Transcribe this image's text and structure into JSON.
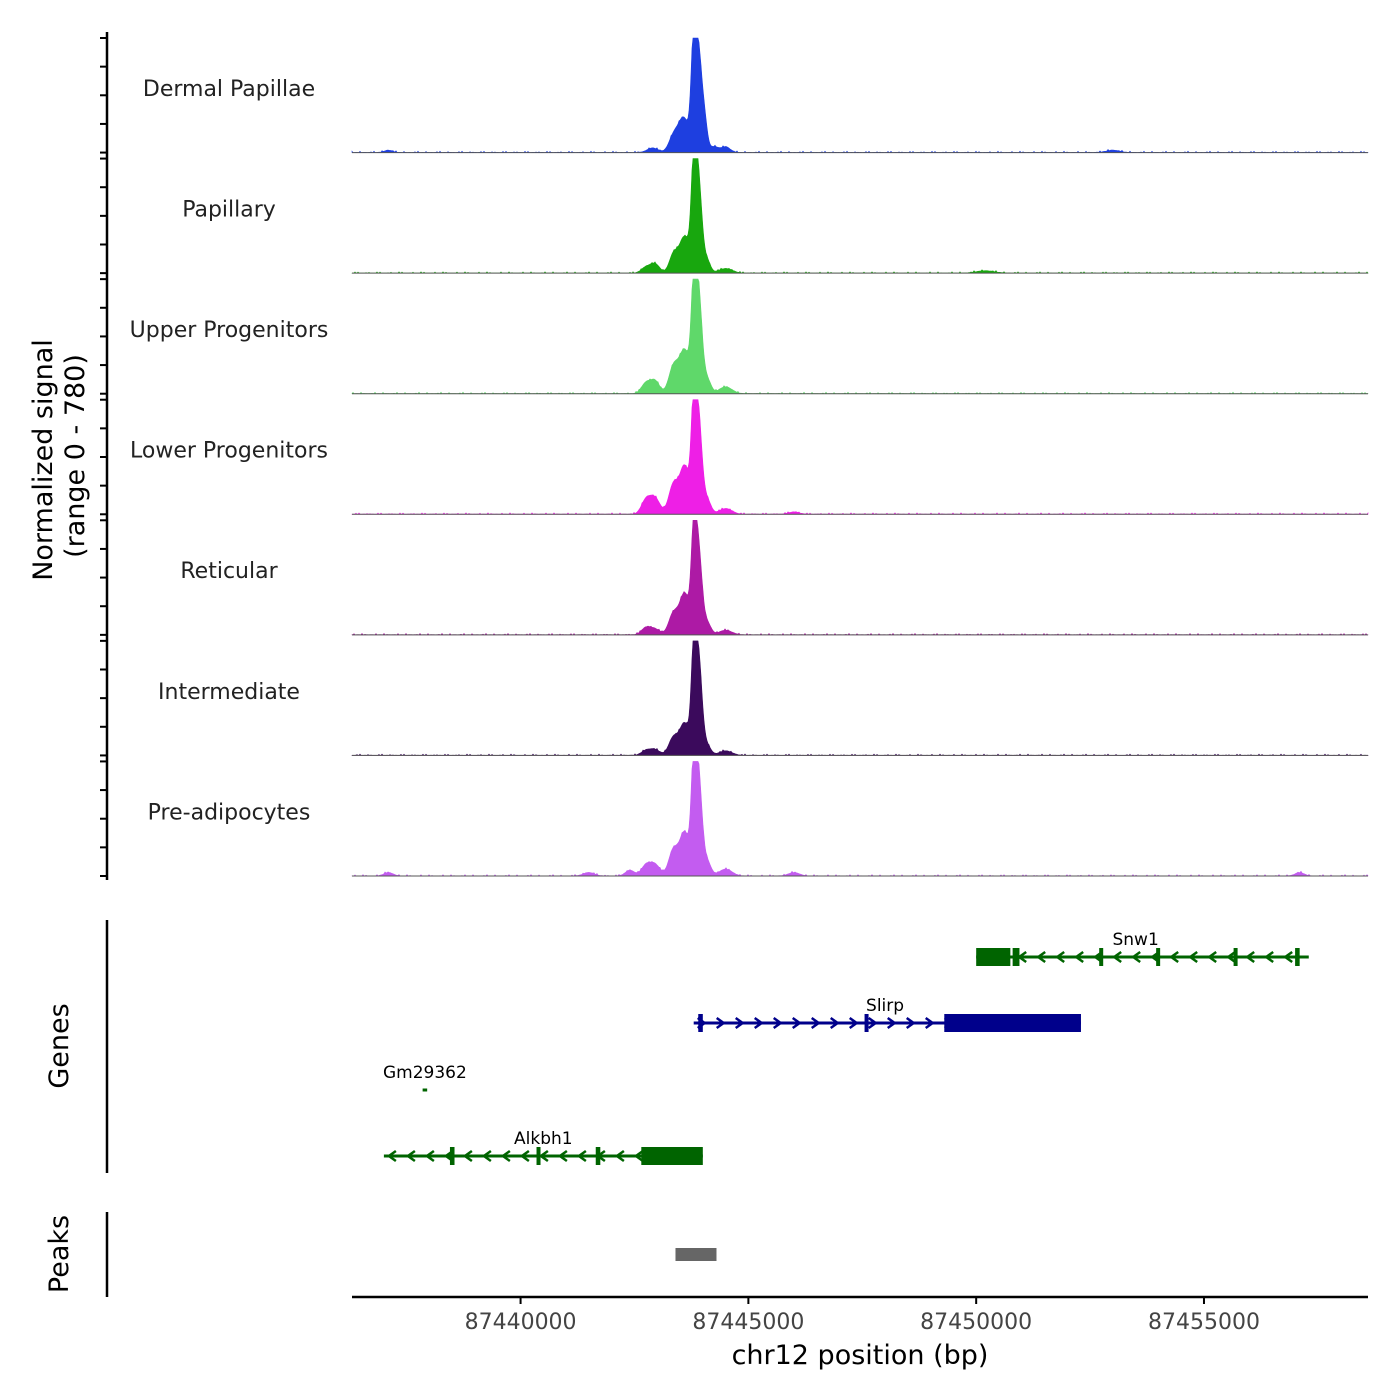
{
  "chart_data": {
    "type": "area",
    "title": "",
    "ylabel_line1": "Normalized signal",
    "ylabel_line2": "(range 0 - 780)",
    "signal_range": [
      0,
      780
    ],
    "xlabel": "chr12 position (bp)",
    "xlim": [
      87436300,
      87458600
    ],
    "x_ticks": [
      87440000,
      87445000,
      87450000,
      87455000
    ],
    "x_tick_labels": [
      "87440000",
      "87445000",
      "87450000",
      "87455000"
    ],
    "tracks": [
      {
        "name": "Dermal Papillae",
        "color": "#1e3fe0",
        "peaks": [
          [
            87443350,
            0.13,
            100
          ],
          [
            87443580,
            0.3,
            120
          ],
          [
            87443800,
            0.73,
            55
          ],
          [
            87443900,
            0.88,
            85
          ],
          [
            87444050,
            0.18,
            60
          ],
          [
            87444250,
            0.05,
            90
          ],
          [
            87444500,
            0.05,
            100
          ],
          [
            87442900,
            0.04,
            120
          ],
          [
            87437100,
            0.02,
            90
          ],
          [
            87453000,
            0.02,
            150
          ]
        ]
      },
      {
        "name": "Papillary",
        "color": "#18a70e",
        "peaks": [
          [
            87442750,
            0.05,
            100
          ],
          [
            87442950,
            0.08,
            100
          ],
          [
            87443350,
            0.15,
            90
          ],
          [
            87443600,
            0.32,
            120
          ],
          [
            87443800,
            0.74,
            55
          ],
          [
            87443900,
            0.82,
            80
          ],
          [
            87444100,
            0.1,
            70
          ],
          [
            87444500,
            0.04,
            150
          ],
          [
            87450200,
            0.02,
            200
          ]
        ]
      },
      {
        "name": "Upper Progenitors",
        "color": "#5fd86a",
        "peaks": [
          [
            87442750,
            0.09,
            100
          ],
          [
            87442950,
            0.11,
            100
          ],
          [
            87443350,
            0.22,
            100
          ],
          [
            87443600,
            0.38,
            120
          ],
          [
            87443800,
            0.7,
            55
          ],
          [
            87443900,
            0.9,
            80
          ],
          [
            87444100,
            0.12,
            80
          ],
          [
            87444500,
            0.06,
            140
          ]
        ]
      },
      {
        "name": "Lower Progenitors",
        "color": "#ee1fe6",
        "peaks": [
          [
            87442750,
            0.12,
            100
          ],
          [
            87442950,
            0.14,
            110
          ],
          [
            87443350,
            0.25,
            100
          ],
          [
            87443600,
            0.42,
            110
          ],
          [
            87443800,
            0.75,
            55
          ],
          [
            87443900,
            0.86,
            80
          ],
          [
            87444100,
            0.12,
            80
          ],
          [
            87444500,
            0.05,
            140
          ],
          [
            87446000,
            0.02,
            120
          ]
        ]
      },
      {
        "name": "Reticular",
        "color": "#ad1aa5",
        "peaks": [
          [
            87442750,
            0.06,
            100
          ],
          [
            87442950,
            0.05,
            110
          ],
          [
            87443350,
            0.18,
            100
          ],
          [
            87443600,
            0.36,
            110
          ],
          [
            87443800,
            0.7,
            55
          ],
          [
            87443900,
            0.76,
            80
          ],
          [
            87444100,
            0.1,
            80
          ],
          [
            87444500,
            0.04,
            140
          ]
        ]
      },
      {
        "name": "Intermediate",
        "color": "#3b0a5c",
        "peaks": [
          [
            87442750,
            0.04,
            100
          ],
          [
            87442950,
            0.05,
            110
          ],
          [
            87443350,
            0.15,
            100
          ],
          [
            87443600,
            0.28,
            110
          ],
          [
            87443800,
            0.7,
            55
          ],
          [
            87443900,
            0.87,
            80
          ],
          [
            87444100,
            0.08,
            80
          ],
          [
            87444500,
            0.04,
            140
          ]
        ]
      },
      {
        "name": "Pre-adipocytes",
        "color": "#c35cf0",
        "peaks": [
          [
            87442400,
            0.05,
            100
          ],
          [
            87442750,
            0.09,
            100
          ],
          [
            87442950,
            0.1,
            110
          ],
          [
            87443350,
            0.22,
            100
          ],
          [
            87443600,
            0.38,
            110
          ],
          [
            87443800,
            0.76,
            55
          ],
          [
            87443900,
            0.9,
            80
          ],
          [
            87444100,
            0.12,
            80
          ],
          [
            87444500,
            0.06,
            140
          ],
          [
            87437100,
            0.03,
            100
          ],
          [
            87441500,
            0.03,
            120
          ],
          [
            87446000,
            0.03,
            120
          ],
          [
            87457100,
            0.03,
            100
          ]
        ]
      }
    ],
    "genes_label": "Genes",
    "genes": [
      {
        "name": "Snw1",
        "strand": "-",
        "color": "#006400",
        "row": 0,
        "start": 87450000,
        "end": 87457300,
        "exons": [
          [
            87450000,
            87450750
          ],
          [
            87450800,
            87450950
          ],
          [
            87452700,
            87452780
          ],
          [
            87453950,
            87454030
          ],
          [
            87455650,
            87455730
          ],
          [
            87457000,
            87457100
          ]
        ]
      },
      {
        "name": "Slirp",
        "strand": "+",
        "color": "#00008b",
        "row": 1,
        "start": 87443800,
        "end": 87452300,
        "exons": [
          [
            87443900,
            87444000
          ],
          [
            87447550,
            87447620
          ],
          [
            87449300,
            87452300
          ]
        ]
      },
      {
        "name": "Gm29362",
        "strand": "-",
        "color": "#006400",
        "row": 2,
        "start": 87437850,
        "end": 87437950,
        "exons": []
      },
      {
        "name": "Alkbh1",
        "strand": "-",
        "color": "#006400",
        "row": 3,
        "start": 87437000,
        "end": 87444000,
        "exons": [
          [
            87438450,
            87438550
          ],
          [
            87440350,
            87440420
          ],
          [
            87441650,
            87441750
          ],
          [
            87442650,
            87444000
          ]
        ]
      }
    ],
    "peaks_label": "Peaks",
    "peak_regions": [
      [
        87443400,
        87444300
      ]
    ]
  }
}
